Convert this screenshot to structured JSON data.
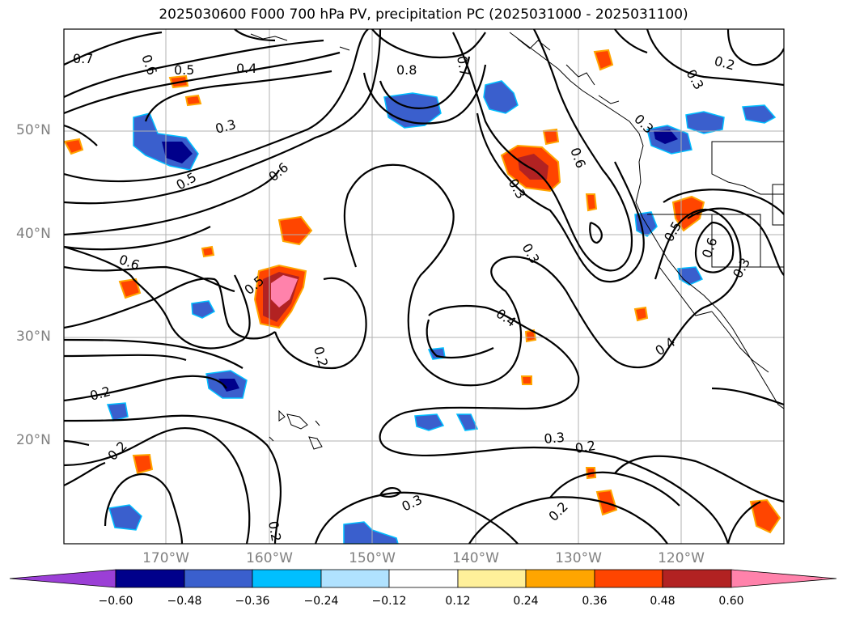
{
  "title": "2025030600 F000 700 hPa PV, precipitation PC (2025031000 - 2025031100)",
  "lat_labels": [
    "50°N",
    "40°N",
    "30°N",
    "20°N"
  ],
  "lon_labels": [
    "170°W",
    "160°W",
    "150°W",
    "140°W",
    "130°W",
    "120°W"
  ],
  "colorbar": {
    "ticks": [
      "−0.60",
      "−0.48",
      "−0.36",
      "−0.24",
      "−0.12",
      "0.12",
      "0.24",
      "0.36",
      "0.48",
      "0.60"
    ],
    "colors": [
      "#9b3fd6",
      "#00008b",
      "#3a5fcd",
      "#00bfff",
      "#b0e2ff",
      "#ffffff",
      "#fff09a",
      "#ffa500",
      "#ff4500",
      "#b22222",
      "#ff82ab"
    ]
  },
  "contour_labels": [
    "0.7",
    "0.6",
    "0.5",
    "0.4",
    "0.8",
    "0.7",
    "0.2",
    "0.3",
    "0.3",
    "0.5",
    "0.6",
    "0.3",
    "0.6",
    "0.3",
    "0.6",
    "0.3",
    "0.5",
    "0.6",
    "0.3",
    "0.5",
    "0.4",
    "0.2",
    "0.4",
    "0.2",
    "0.3",
    "0.2",
    "0.2",
    "0.3",
    "0.2",
    "0.2"
  ]
}
